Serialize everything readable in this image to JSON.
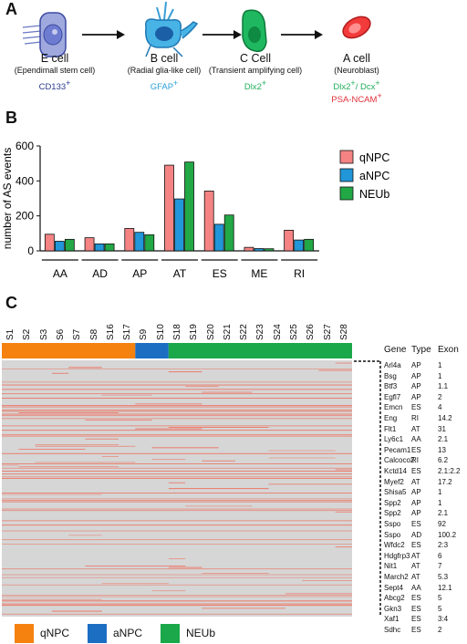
{
  "panel_a": {
    "letter": "A",
    "cells": [
      {
        "title": "E cell",
        "subtitle": "(Ependimall stem cell)",
        "marker": "CD133",
        "marker_sup": "+",
        "marker_color": "#2a3a8c"
      },
      {
        "title": "B cell",
        "subtitle": "(Radial glia-like cell)",
        "marker": "GFAP",
        "marker_sup": "+",
        "marker_color": "#2aa0d8"
      },
      {
        "title": "C Cell",
        "subtitle": "(Transient amplifying cell)",
        "marker": "Dlx2",
        "marker_sup": "+",
        "marker_color": "#1fae5a"
      },
      {
        "title": "A cell",
        "subtitle": "(Neuroblast)",
        "marker": "Dlx2",
        "marker_sup": "+",
        "marker_tail": "/ Dcx",
        "marker_tail_sup": "+",
        "marker_color": "#1fae5a",
        "marker2": "PSA-NCAM",
        "marker2_sup": "+",
        "marker2_color": "#e0303a"
      }
    ]
  },
  "panel_b": {
    "letter": "B"
  },
  "panel_c": {
    "letter": "C",
    "samples": [
      "S1",
      "S2",
      "S3",
      "S6",
      "S7",
      "S8",
      "S16",
      "S17",
      "S9",
      "S10",
      "S18",
      "S19",
      "S20",
      "S21",
      "S22",
      "S23",
      "S24",
      "S25",
      "S26",
      "S27",
      "S28"
    ],
    "groups": [
      {
        "name": "qNPC",
        "count": 8,
        "color": "#f5820f"
      },
      {
        "name": "aNPC",
        "count": 2,
        "color": "#1b6ec2"
      },
      {
        "name": "NEUb",
        "count": 11,
        "color": "#1aa84a"
      }
    ],
    "table_headers": [
      "Gene",
      "Type",
      "Exon"
    ],
    "table_rows": [
      [
        "Arl4a",
        "AP",
        "1"
      ],
      [
        "Bsg",
        "AP",
        "1"
      ],
      [
        "Btf3",
        "AP",
        "1.1"
      ],
      [
        "Egfl7",
        "AP",
        "2"
      ],
      [
        "Emcn",
        "ES",
        "4"
      ],
      [
        "Eng",
        "RI",
        "14.2"
      ],
      [
        "Flt1",
        "AT",
        "31"
      ],
      [
        "Ly6c1",
        "AA",
        "2.1"
      ],
      [
        "Pecam1",
        "ES",
        "13"
      ],
      [
        "Calcoco2",
        "RI",
        "6.2"
      ],
      [
        "Kctd14",
        "ES",
        "2.1:2.2"
      ],
      [
        "Myef2",
        "AT",
        "17.2"
      ],
      [
        "Shisa5",
        "AP",
        "1"
      ],
      [
        "Spp2",
        "AP",
        "1"
      ],
      [
        "Spp2",
        "AP",
        "2.1"
      ],
      [
        "Sspo",
        "ES",
        "92"
      ],
      [
        "Sspo",
        "AD",
        "100.2"
      ],
      [
        "Wfdc2",
        "ES",
        "2:3"
      ],
      [
        "Hdgfrp3",
        "AT",
        "6"
      ],
      [
        "Nit1",
        "AT",
        "7"
      ],
      [
        "March2",
        "AT",
        "5.3"
      ],
      [
        "Sept4",
        "AA",
        "12.1"
      ],
      [
        "Abcg2",
        "ES",
        "5"
      ],
      [
        "Gkn3",
        "ES",
        "5"
      ],
      [
        "Xaf1",
        "ES",
        "3:4"
      ],
      [
        "Sdhc",
        "ES",
        "2"
      ]
    ],
    "heatmap_colors": {
      "background": "#d6d6d6",
      "event": "#ee6d5a"
    }
  },
  "colors": {
    "qNPC": "#f58383",
    "aNPC": "#2196d8",
    "NEUb": "#22a845"
  },
  "chart_data": {
    "type": "bar",
    "categories": [
      "AA",
      "AD",
      "AP",
      "AT",
      "ES",
      "ME",
      "RI"
    ],
    "series": [
      {
        "name": "qNPC",
        "values": [
          95,
          75,
          128,
          490,
          342,
          20,
          118
        ]
      },
      {
        "name": "aNPC",
        "values": [
          55,
          40,
          106,
          297,
          152,
          13,
          62
        ]
      },
      {
        "name": "NEUb",
        "values": [
          66,
          40,
          92,
          508,
          205,
          12,
          66
        ]
      }
    ],
    "ylabel": "number of AS events",
    "ylim": [
      0,
      600
    ],
    "yticks": [
      0,
      200,
      400,
      600
    ],
    "legend_position": "top-right"
  }
}
